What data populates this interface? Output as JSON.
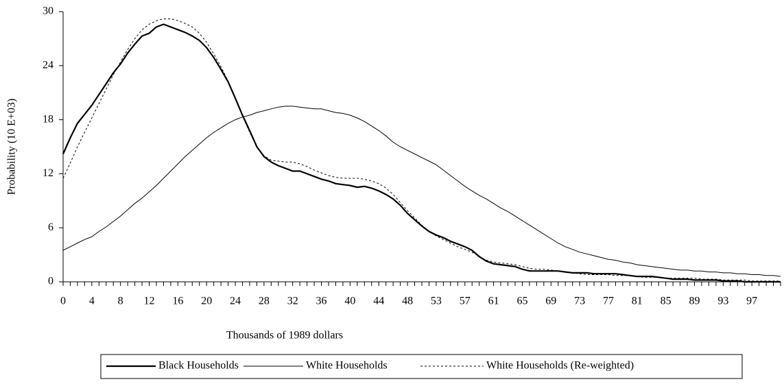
{
  "chart_data": {
    "type": "line",
    "xlabel": "Thousands of 1989 dollars",
    "ylabel": "Probability (10 E+03)",
    "categories": [
      0,
      null,
      null,
      null,
      4,
      null,
      null,
      null,
      8,
      null,
      null,
      null,
      12,
      null,
      null,
      null,
      16,
      null,
      null,
      null,
      20,
      null,
      null,
      null,
      24,
      null,
      null,
      null,
      28,
      null,
      null,
      null,
      32,
      null,
      null,
      null,
      36,
      null,
      null,
      null,
      40,
      null,
      null,
      null,
      44,
      null,
      null,
      null,
      48,
      null,
      null,
      null,
      53,
      null,
      null,
      null,
      57,
      null,
      null,
      null,
      61,
      null,
      null,
      null,
      65,
      null,
      null,
      null,
      69,
      null,
      null,
      null,
      73,
      null,
      null,
      null,
      77,
      null,
      null,
      null,
      81,
      null,
      null,
      null,
      85,
      null,
      null,
      null,
      89,
      null,
      null,
      null,
      93,
      null,
      null,
      null,
      97,
      null,
      null,
      null,
      null
    ],
    "ylim": [
      0,
      30
    ],
    "yticks": [
      0,
      6,
      12,
      18,
      24,
      30
    ],
    "series": [
      {
        "name": "Black Households",
        "color": "#000000",
        "line_style": "thick",
        "values": [
          14.2,
          16,
          17.6,
          18.6,
          19.6,
          20.8,
          22,
          23.2,
          24.2,
          25.4,
          26.4,
          27.3,
          27.6,
          28.3,
          28.6,
          28.3,
          28,
          27.7,
          27.3,
          26.8,
          26,
          24.9,
          23.6,
          22.2,
          20.4,
          18.5,
          16.8,
          15,
          13.9,
          13.3,
          12.9,
          12.6,
          12.3,
          12.3,
          12,
          11.7,
          11.4,
          11.2,
          10.9,
          10.8,
          10.7,
          10.5,
          10.6,
          10.4,
          10.1,
          9.7,
          9.2,
          8.5,
          7.6,
          6.9,
          6.2,
          5.6,
          5.2,
          4.9,
          4.5,
          4.2,
          3.9,
          3.5,
          2.8,
          2.3,
          2,
          1.9,
          1.8,
          1.7,
          1.4,
          1.2,
          1.2,
          1.2,
          1.2,
          1.2,
          1.1,
          1,
          1,
          1,
          0.9,
          0.9,
          0.9,
          0.9,
          0.8,
          0.7,
          0.6,
          0.6,
          0.6,
          0.5,
          0.4,
          0.3,
          0.3,
          0.3,
          0.2,
          0.2,
          0.2,
          0.2,
          0.1,
          0.1,
          0.1,
          0,
          0,
          0,
          0,
          0,
          0
        ]
      },
      {
        "name": "White Households",
        "color": "#000000",
        "line_style": "thin",
        "values": [
          3.5,
          3.9,
          4.3,
          4.7,
          5,
          5.6,
          6.1,
          6.7,
          7.3,
          8,
          8.7,
          9.3,
          10,
          10.7,
          11.5,
          12.3,
          13.1,
          13.9,
          14.6,
          15.3,
          16,
          16.6,
          17.1,
          17.6,
          18,
          18.3,
          18.5,
          18.8,
          19,
          19.2,
          19.4,
          19.5,
          19.5,
          19.4,
          19.3,
          19.2,
          19.2,
          19,
          18.8,
          18.7,
          18.5,
          18.2,
          17.8,
          17.3,
          16.8,
          16.2,
          15.5,
          15,
          14.6,
          14.2,
          13.8,
          13.4,
          13,
          12.4,
          11.8,
          11.2,
          10.6,
          10.1,
          9.6,
          9.2,
          8.7,
          8.2,
          7.8,
          7.3,
          6.8,
          6.3,
          5.8,
          5.3,
          4.8,
          4.3,
          3.9,
          3.6,
          3.3,
          3.1,
          2.9,
          2.7,
          2.5,
          2.4,
          2.2,
          2.1,
          1.9,
          1.8,
          1.7,
          1.6,
          1.5,
          1.4,
          1.3,
          1.3,
          1.2,
          1.2,
          1.1,
          1.1,
          1,
          1,
          0.9,
          0.9,
          0.8,
          0.8,
          0.7,
          0.7,
          0.6
        ]
      },
      {
        "name": "White Households (Re-weighted)",
        "color": "#000000",
        "line_style": "dashed",
        "values": [
          11.5,
          13.2,
          15,
          16.6,
          18.2,
          19.8,
          21.4,
          23,
          24.4,
          25.8,
          27,
          28,
          28.6,
          29,
          29.2,
          29.2,
          29,
          28.7,
          28.3,
          27.6,
          26.6,
          25.3,
          23.9,
          22.3,
          20.3,
          18.4,
          16.6,
          15,
          14,
          13.5,
          13.4,
          13.3,
          13.3,
          13.1,
          12.8,
          12.4,
          12.1,
          11.8,
          11.6,
          11.5,
          11.5,
          11.5,
          11.4,
          11.2,
          10.9,
          10.4,
          9.7,
          8.8,
          7.9,
          7.1,
          6.3,
          5.6,
          5.1,
          4.7,
          4.3,
          3.9,
          3.6,
          3.3,
          2.8,
          2.4,
          2.2,
          2.1,
          2,
          1.9,
          1.7,
          1.5,
          1.4,
          1.4,
          1.3,
          1.2,
          1.1,
          1,
          0.9,
          0.8,
          0.8,
          0.8,
          0.8,
          0.7,
          0.7,
          0.7,
          0.6,
          0.5,
          0.5,
          0.5,
          0.4,
          0.4,
          0.4,
          0.4,
          0.4,
          0.3,
          0.3,
          0.3,
          0.2,
          0.2,
          0.2,
          0.2,
          0.1,
          0.1,
          0.1,
          0.1,
          0.1
        ]
      }
    ]
  }
}
